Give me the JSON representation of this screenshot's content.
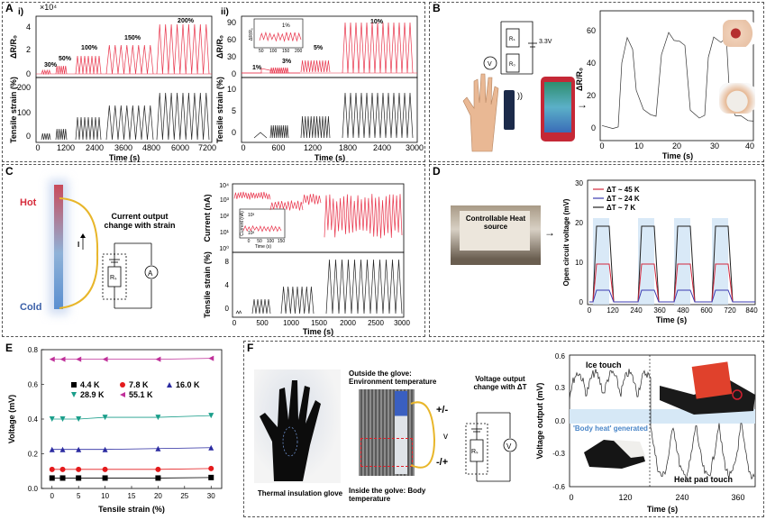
{
  "panels": {
    "a": {
      "label": "A",
      "sub_i": "i)",
      "sub_ii": "ii)",
      "exponent": "×10⁴",
      "ylabel_top": "ΔR/R₀",
      "ylabel_bottom": "Tensile strain (%)",
      "xlabel": "Time (s)",
      "i_top_ticks": [
        "0",
        "2",
        "4"
      ],
      "i_bottom_ticks": [
        "0",
        "100",
        "200"
      ],
      "i_x_ticks": [
        "0",
        "1200",
        "2400",
        "3600",
        "4800",
        "6000",
        "7200"
      ],
      "i_strain_labels": [
        "30%",
        "50%",
        "100%",
        "150%",
        "200%"
      ],
      "ii_top_ticks": [
        "0",
        "30",
        "60",
        "90"
      ],
      "ii_bottom_ticks": [
        "0",
        "5",
        "10"
      ],
      "ii_x_ticks": [
        "0",
        "600",
        "1200",
        "1800",
        "2400",
        "3000"
      ],
      "ii_strain_labels": [
        "1%",
        "3%",
        "5%",
        "10%"
      ],
      "ii_inset_label": "1%",
      "ii_inset_ticks": [
        "50",
        "100",
        "150",
        "200"
      ],
      "ii_inset_y": "ΔR/R₀"
    },
    "b": {
      "label": "B",
      "voltage": "3.3V",
      "r_label_1": "Rₛ",
      "r_label_2": "R₀",
      "v_label": "V",
      "ylabel": "ΔR/R₀",
      "xlabel": "Time (s)",
      "y_ticks": [
        "0",
        "20",
        "40",
        "60"
      ],
      "x_ticks": [
        "0",
        "10",
        "20",
        "30",
        "40"
      ]
    },
    "c": {
      "label": "C",
      "hot": "Hot",
      "cold": "Cold",
      "current_label": "Current output change with strain",
      "i_label": "I",
      "ammeter": "A",
      "rs": "Rₛ",
      "ylabel_top": "Current (nA)",
      "ylabel_bottom": "Tensile strain (%)",
      "xlabel": "Time (s)",
      "top_ticks": [
        "10⁰",
        "10¹",
        "10²",
        "10³",
        "10⁴"
      ],
      "bottom_ticks": [
        "0",
        "4",
        "8"
      ],
      "x_ticks": [
        "0",
        "500",
        "1000",
        "1500",
        "2000",
        "2500",
        "3000"
      ],
      "inset_y": "Current (nA)",
      "inset_x": "Time (s)",
      "inset_x_ticks": [
        "0",
        "50",
        "100",
        "150"
      ],
      "inset_y_ticks": [
        "10²",
        "10³"
      ]
    },
    "d": {
      "label": "D",
      "photo_caption": "Controllable Heat source",
      "ylabel": "Open circuit voltage (mV)",
      "xlabel": "Time (s)",
      "y_ticks": [
        "0",
        "10",
        "20",
        "30"
      ],
      "x_ticks": [
        "0",
        "120",
        "240",
        "360",
        "480",
        "600",
        "720",
        "840"
      ],
      "legend": [
        "ΔT ~ 45 K",
        "ΔT ~ 24 K",
        "ΔT ~ 7 K"
      ]
    },
    "e": {
      "label": "E",
      "ylabel": "Voltage (mV)",
      "xlabel": "Tensile strain (%)"
    },
    "f": {
      "label": "F",
      "glove_caption": "Thermal insulation glove",
      "outside": "Outside the glove: Environment temperature",
      "inside": "Inside the golve: Body temperature",
      "plus_minus": "+/-",
      "v_small": "v",
      "minus_plus": "-/+",
      "voltage_change": "Voltage output change with ΔT",
      "rs": "Rₛ",
      "v_label": "V",
      "ylabel": "Voltage output (mV)",
      "xlabel": "Time (s)",
      "y_ticks": [
        "-0.6",
        "-0.3",
        "0.0",
        "0.3",
        "0.6"
      ],
      "x_ticks": [
        "0",
        "120",
        "240",
        "360"
      ],
      "ice": "Ice touch",
      "body_heat": "'Body heat' generated",
      "heat_pad": "Heat pad touch"
    }
  },
  "chart_data": [
    {
      "id": "E",
      "type": "scatter",
      "xlabel": "Tensile strain (%)",
      "ylabel": "Voltage (mV)",
      "xlim": [
        -2,
        32
      ],
      "ylim": [
        0.0,
        0.8
      ],
      "x_ticks": [
        0,
        5,
        10,
        15,
        20,
        25,
        30
      ],
      "y_ticks": [
        0.0,
        0.2,
        0.4,
        0.6,
        0.8
      ],
      "x": [
        0,
        2,
        5,
        10,
        20,
        30
      ],
      "legend_placement": "center-left",
      "series": [
        {
          "name": "4.4 K",
          "color": "#000000",
          "marker": "square",
          "values": [
            0.06,
            0.06,
            0.06,
            0.06,
            0.06,
            0.063
          ]
        },
        {
          "name": "7.8 K",
          "color": "#e41a1c",
          "marker": "circle",
          "values": [
            0.11,
            0.11,
            0.11,
            0.11,
            0.11,
            0.115
          ]
        },
        {
          "name": "16.0 K",
          "color": "#2a2aa0",
          "marker": "triangle-up",
          "values": [
            0.225,
            0.225,
            0.225,
            0.225,
            0.23,
            0.235
          ]
        },
        {
          "name": "28.9 K",
          "color": "#1a9e8a",
          "marker": "triangle-down",
          "values": [
            0.4,
            0.4,
            0.4,
            0.41,
            0.41,
            0.42
          ]
        },
        {
          "name": "55.1 K",
          "color": "#c0309a",
          "marker": "triangle-left",
          "values": [
            0.745,
            0.745,
            0.745,
            0.745,
            0.745,
            0.75
          ]
        }
      ]
    }
  ],
  "colors": {
    "red": "#e8334a",
    "black": "#222222",
    "blue_band": "#cfe3f5",
    "d_red": "#d2273c",
    "d_blue": "#3a3ab0",
    "d_black": "#222222"
  }
}
